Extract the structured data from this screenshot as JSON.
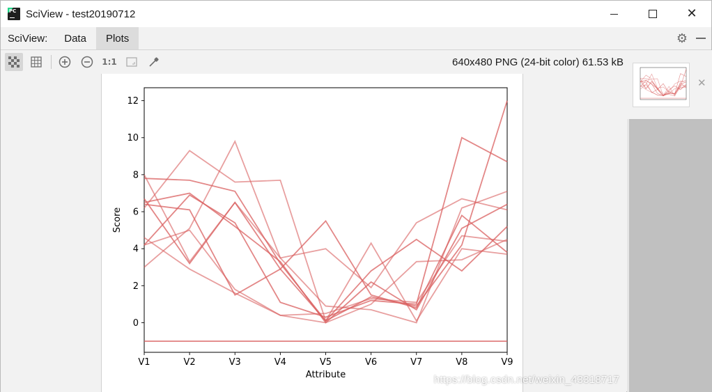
{
  "window": {
    "title": "SciView - test20190712",
    "controls": {
      "minimize": "minimize",
      "maximize": "maximize",
      "close": "close"
    }
  },
  "menubar": {
    "label": "SciView:",
    "tabs": [
      {
        "label": "Data",
        "active": false
      },
      {
        "label": "Plots",
        "active": true
      }
    ]
  },
  "toolbar": {
    "buttons": [
      {
        "icon": "transparent-checker-icon",
        "active": true
      },
      {
        "icon": "grid-icon",
        "active": false
      },
      {
        "icon": "zoom-in-icon",
        "active": false
      },
      {
        "icon": "zoom-out-icon",
        "active": false
      },
      {
        "icon": "actual-size-icon",
        "label": "1:1",
        "active": false
      },
      {
        "icon": "fit-screen-icon",
        "active": false
      },
      {
        "icon": "color-picker-icon",
        "active": false
      }
    ],
    "image_info": "640x480 PNG (24-bit color) 61.53 kB"
  },
  "watermark": "https://blog.csdn.net/weixin_43318717",
  "colors": {
    "line": "#d95f5f",
    "window_bg": "#f2f2f2",
    "thumb_panel_bg": "#c0c0c0"
  },
  "chart_data": {
    "type": "line",
    "title": "",
    "xlabel": "Attribute",
    "ylabel": "Score",
    "categories": [
      "V1",
      "V2",
      "V3",
      "V4",
      "V5",
      "V6",
      "V7",
      "V8",
      "V9"
    ],
    "yticks": [
      0,
      2,
      4,
      6,
      8,
      10,
      12
    ],
    "ylim": [
      -1.6,
      12.7
    ],
    "grid": false,
    "legend": "none",
    "series": [
      {
        "values": [
          7.8,
          7.7,
          7.1,
          3.2,
          0.1,
          1.4,
          0.9,
          4.2,
          12.0
        ]
      },
      {
        "values": [
          6.2,
          9.3,
          7.6,
          7.7,
          0.1,
          4.3,
          0.1,
          4.0,
          3.7
        ]
      },
      {
        "values": [
          4.2,
          6.9,
          5.4,
          1.1,
          0.3,
          1.2,
          1.0,
          10.0,
          8.7
        ]
      },
      {
        "values": [
          3.0,
          5.1,
          9.8,
          3.5,
          4.0,
          1.9,
          5.4,
          6.7,
          6.1
        ]
      },
      {
        "values": [
          6.7,
          3.2,
          6.5,
          2.9,
          5.5,
          1.5,
          0.8,
          5.8,
          3.8
        ]
      },
      {
        "values": [
          4.6,
          2.9,
          1.6,
          0.4,
          0.0,
          1.0,
          3.3,
          3.4,
          4.5
        ]
      },
      {
        "values": [
          6.4,
          6.1,
          1.5,
          2.9,
          0.1,
          2.8,
          4.5,
          2.8,
          5.2
        ]
      },
      {
        "values": [
          8.0,
          3.3,
          6.5,
          3.5,
          0.9,
          0.7,
          0.0,
          6.2,
          7.1
        ]
      },
      {
        "values": [
          6.5,
          7.0,
          5.2,
          3.3,
          0.0,
          2.2,
          0.7,
          5.1,
          6.4
        ]
      },
      {
        "values": [
          4.2,
          5.0,
          1.8,
          0.4,
          0.5,
          1.3,
          1.1,
          4.7,
          4.4
        ]
      },
      {
        "values": [
          -1.0,
          -1.0,
          -1.0,
          -1.0,
          -1.0,
          -1.0,
          -1.0,
          -1.0,
          -1.0
        ]
      }
    ]
  }
}
